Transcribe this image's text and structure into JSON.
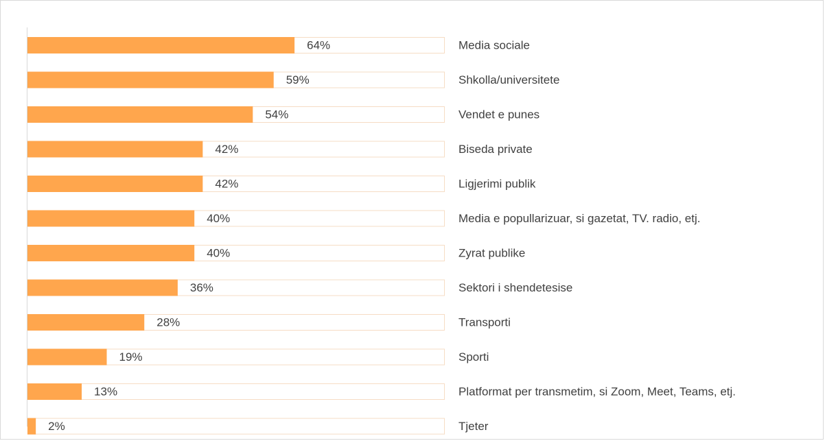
{
  "chart_data": {
    "type": "bar",
    "orientation": "horizontal",
    "categories": [
      "Media sociale",
      "Shkolla/universitete",
      "Vendet e punes",
      "Biseda private",
      "Ligjerimi publik",
      "Media e popullarizuar, si gazetat, TV. radio, etj.",
      "Zyrat publike",
      "Sektori i shendetesise",
      "Transporti",
      "Sporti",
      "Platformat per transmetim, si Zoom, Meet, Teams, etj.",
      "Tjeter"
    ],
    "values": [
      64,
      59,
      54,
      42,
      42,
      40,
      40,
      36,
      28,
      19,
      13,
      2
    ],
    "value_labels": [
      "64%",
      "59%",
      "54%",
      "42%",
      "42%",
      "40%",
      "40%",
      "36%",
      "28%",
      "19%",
      "13%",
      "2%"
    ],
    "color": "#ffa64d",
    "xlim": [
      0,
      100
    ]
  }
}
